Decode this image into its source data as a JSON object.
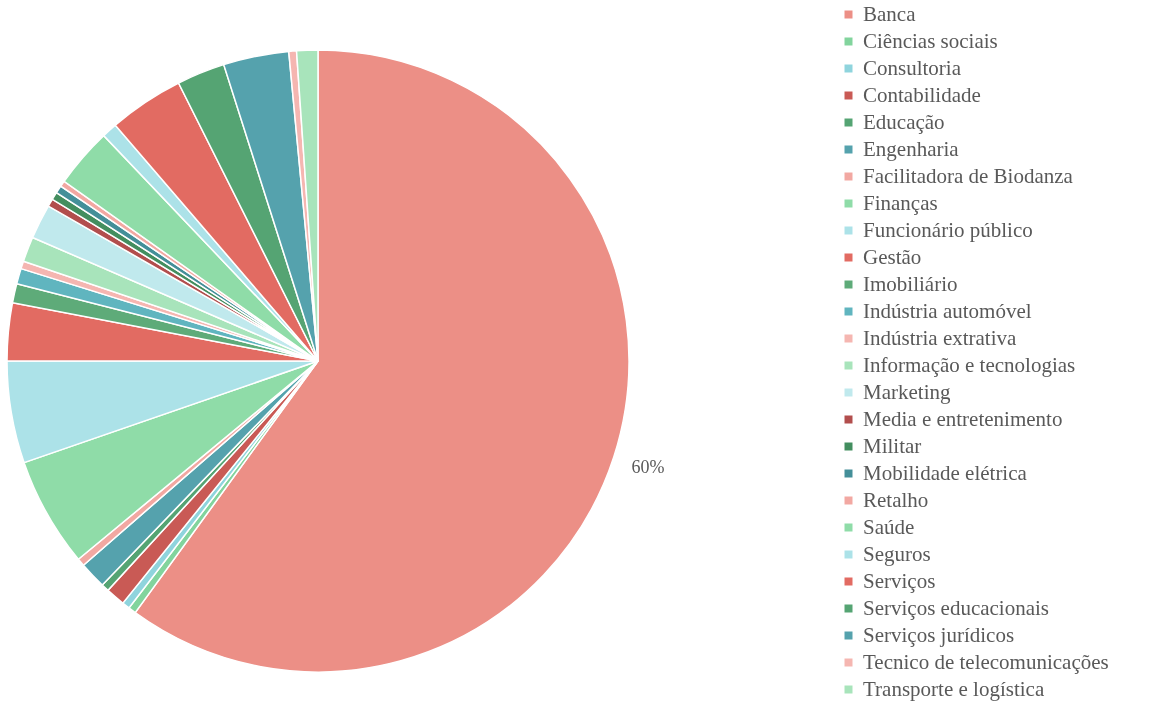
{
  "chart_data": {
    "type": "pie",
    "categories": [
      "Banca",
      "Ciências sociais",
      "Consultoria",
      "Contabilidade",
      "Educação",
      "Engenharia",
      "Facilitadora de Biodanza",
      "Finanças",
      "Funcionário público",
      "Gestão",
      "Imobiliário",
      "Indústria automóvel",
      "Indústria extrativa",
      "Informação e tecnologias",
      "Marketing",
      "Media e entretenimento",
      "Militar",
      "Mobilidade elétrica",
      "Retalho",
      "Saúde",
      "Seguros",
      "Serviços",
      "Serviços educacionais",
      "Serviços jurídicos",
      "Tecnico de telecomunicações",
      "Transporte e logística"
    ],
    "values": [
      60,
      0.4,
      0.4,
      1.0,
      0.4,
      1.4,
      0.4,
      5.7,
      5.3,
      3.0,
      1.0,
      0.8,
      0.4,
      1.3,
      1.8,
      0.4,
      0.4,
      0.4,
      0.3,
      3.1,
      0.8,
      3.9,
      2.5,
      3.4,
      0.4,
      1.1
    ],
    "colors": [
      "#ec8f86",
      "#82d49d",
      "#8fd4dd",
      "#c95a55",
      "#55a473",
      "#55a2ad",
      "#f2a8a2",
      "#8fdca8",
      "#ace2e8",
      "#e26b62",
      "#5eab79",
      "#60b5bf",
      "#f5b6b1",
      "#a8e4bb",
      "#c0e9ed",
      "#b24e4d",
      "#438e5f",
      "#448f99",
      "#f2a8a2",
      "#8fdca8",
      "#ace2e8",
      "#e26b62",
      "#55a473",
      "#55a2ad",
      "#f5b6b1",
      "#a8e4bb"
    ],
    "value_labels": [
      "60%",
      null,
      null,
      null,
      null,
      null,
      null,
      null,
      null,
      null,
      null,
      null,
      null,
      null,
      null,
      null,
      null,
      null,
      null,
      null,
      null,
      null,
      null,
      null,
      null,
      null
    ],
    "legend": "right"
  }
}
